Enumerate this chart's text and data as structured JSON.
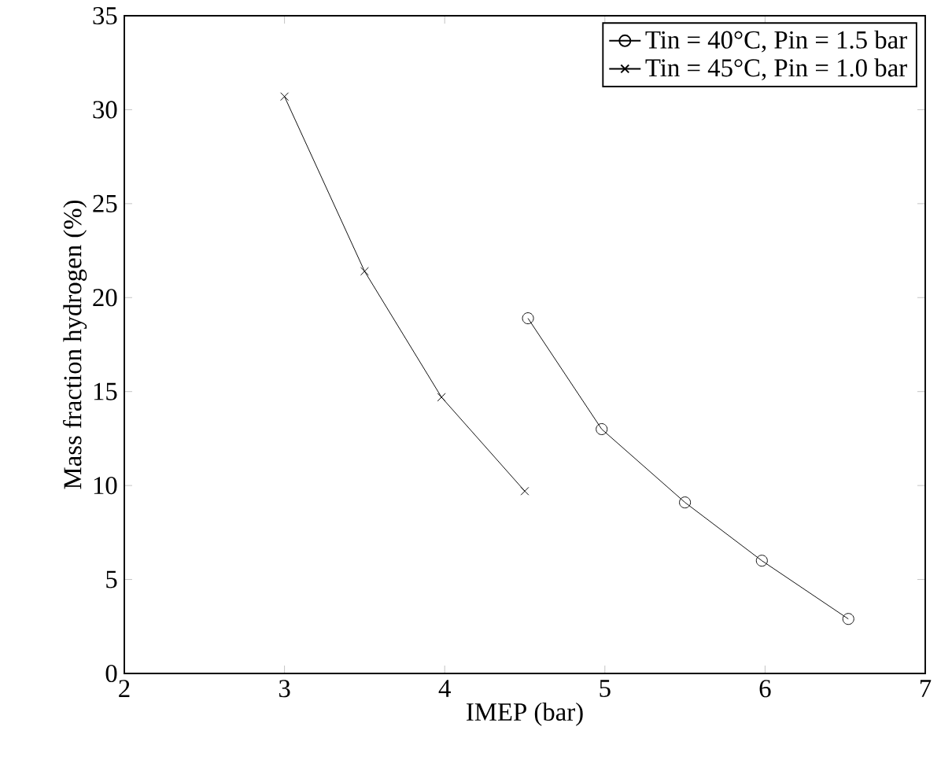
{
  "chart_data": {
    "type": "line",
    "xlabel": "IMEP (bar)",
    "ylabel": "Mass fraction hydrogen (%)",
    "xlim": [
      2,
      7
    ],
    "xticks": [
      2,
      3,
      4,
      5,
      6,
      7
    ],
    "ylim": [
      0,
      35
    ],
    "yticks": [
      0,
      5,
      10,
      15,
      20,
      25,
      30,
      35
    ],
    "grid": false,
    "legend": "top right",
    "series": [
      {
        "name": "Tin = 40°C, Pin = 1.5 bar",
        "color": "#000000",
        "marker": "circle",
        "x": [
          4.52,
          4.98,
          5.5,
          5.98,
          6.52
        ],
        "values": [
          18.9,
          13.0,
          9.1,
          6.0,
          2.9
        ]
      },
      {
        "name": "Tin = 45°C, Pin = 1.0 bar",
        "color": "#000000",
        "marker": "cross",
        "x": [
          3.0,
          3.5,
          3.98,
          4.5
        ],
        "values": [
          30.7,
          21.4,
          14.7,
          9.7
        ]
      }
    ]
  }
}
